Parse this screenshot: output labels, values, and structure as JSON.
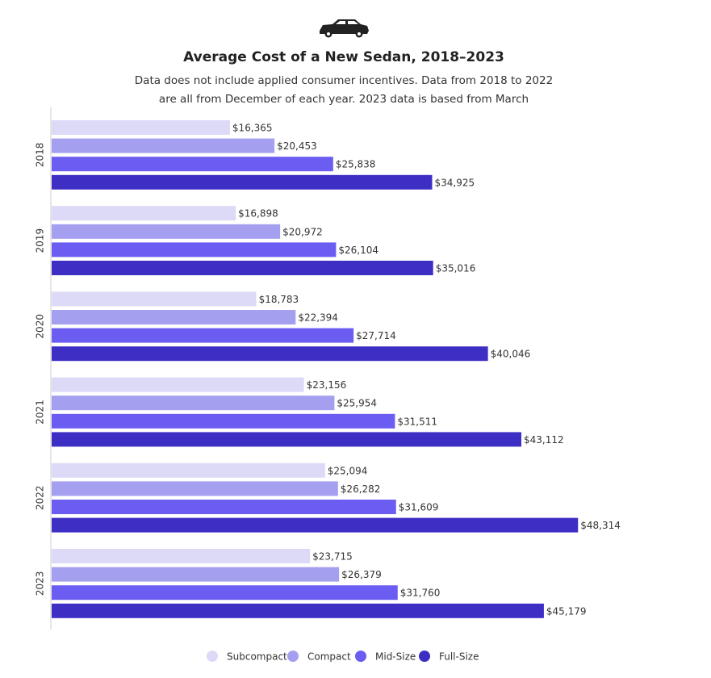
{
  "chart_data": {
    "type": "bar",
    "orientation": "horizontal",
    "title": "Average Cost of a New Sedan, 2018–2023",
    "subtitle": [
      "Data does not include applied consumer incentives. Data from 2018 to 2022",
      "are all from December of each year. 2023 data is based from March"
    ],
    "categories": [
      "2018",
      "2019",
      "2020",
      "2021",
      "2022",
      "2023"
    ],
    "xlim": [
      0,
      60000
    ],
    "series": [
      {
        "name": "Subcompact",
        "color": "#dcdaf7",
        "values": [
          16365,
          16898,
          18783,
          23156,
          25094,
          23715
        ],
        "value_labels": [
          "$16,365",
          "$16,898",
          "$18,783",
          "$23,156",
          "$25,094",
          "$23,715"
        ]
      },
      {
        "name": "Compact",
        "color": "#a59ff0",
        "values": [
          20453,
          20972,
          22394,
          25954,
          26282,
          26379
        ],
        "value_labels": [
          "$20,453",
          "$20,972",
          "$22,394",
          "$25,954",
          "$26,282",
          "$26,379"
        ]
      },
      {
        "name": "Mid-Size",
        "color": "#6b5cf2",
        "values": [
          25838,
          26104,
          27714,
          31511,
          31609,
          31760
        ],
        "value_labels": [
          "$25,838",
          "$26,104",
          "$27,714",
          "$31,511",
          "$31,609",
          "$31,760"
        ]
      },
      {
        "name": "Full-Size",
        "color": "#3e2fc4",
        "values": [
          34925,
          35016,
          40046,
          43112,
          48314,
          45179
        ],
        "value_labels": [
          "$34,925",
          "$35,016",
          "$40,046",
          "$43,112",
          "$48,314",
          "$45,179"
        ]
      }
    ]
  }
}
